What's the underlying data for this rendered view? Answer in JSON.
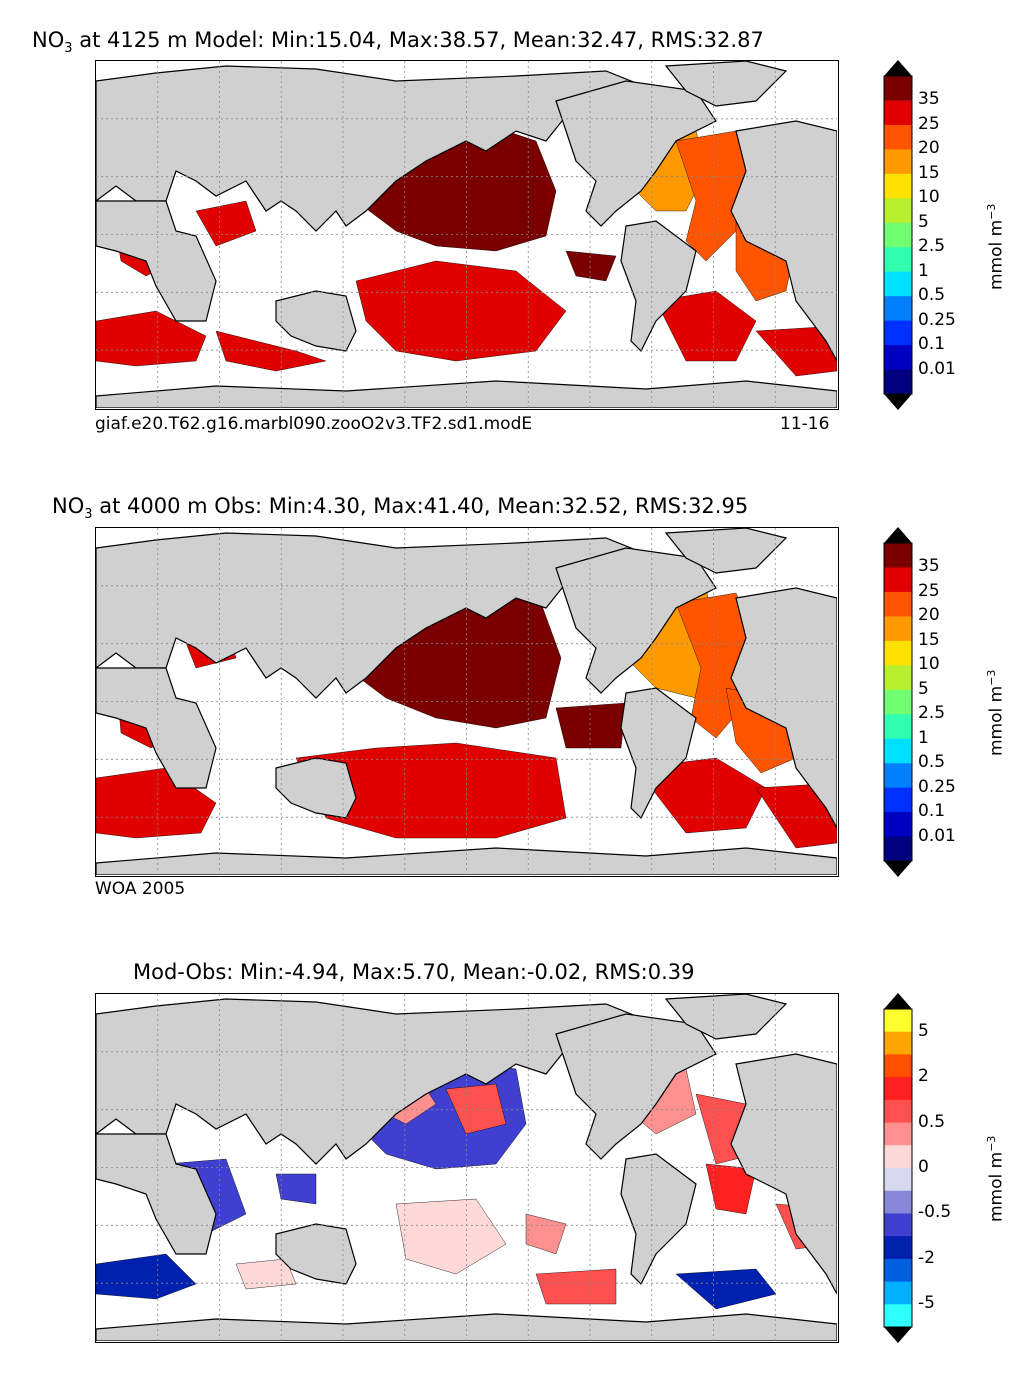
{
  "panels": [
    {
      "title_pre": "NO",
      "title_sub": "3",
      "title_post": " at 4125 m Model: Min:15.04, Max:38.57, Mean:32.47, RMS:32.87",
      "caption_left": "giaf.e20.T62.g16.marbl090.zooO2v3.TF2.sd1.modE",
      "caption_right": "11-16",
      "colorbar_labels": [
        "35",
        "25",
        "20",
        "15",
        "10",
        "5",
        "2.5",
        "1",
        "0.5",
        "0.25",
        "0.1",
        "0.01"
      ],
      "colorbar_colors": [
        "#7a0000",
        "#e00000",
        "#ff5500",
        "#ff9900",
        "#ffe000",
        "#b8f030",
        "#70ff70",
        "#30ffb0",
        "#00e0ff",
        "#0080ff",
        "#0030ff",
        "#0000c0",
        "#000080"
      ],
      "unit": "mmol m",
      "unit_sup": "−3"
    },
    {
      "title_pre": "NO",
      "title_sub": "3",
      "title_post": " at 4000 m Obs: Min:4.30, Max:41.40, Mean:32.52, RMS:32.95",
      "caption_left": "WOA 2005",
      "caption_right": "",
      "colorbar_labels": [
        "35",
        "25",
        "20",
        "15",
        "10",
        "5",
        "2.5",
        "1",
        "0.5",
        "0.25",
        "0.1",
        "0.01"
      ],
      "colorbar_colors": [
        "#7a0000",
        "#e00000",
        "#ff5500",
        "#ff9900",
        "#ffe000",
        "#b8f030",
        "#70ff70",
        "#30ffb0",
        "#00e0ff",
        "#0080ff",
        "#0030ff",
        "#0000c0",
        "#000080"
      ],
      "unit": "mmol m",
      "unit_sup": "−3"
    },
    {
      "title_pre": "Mod-Obs: Min:-4.94, Max:5.70, Mean:-0.02, RMS:0.39",
      "title_sub": "",
      "title_post": "",
      "caption_left": "",
      "caption_right": "",
      "colorbar_labels": [
        "5",
        "2",
        "0.5",
        "0",
        "-0.5",
        "-2",
        "-5"
      ],
      "colorbar_colors": [
        "#ffff30",
        "#ffa500",
        "#ff5000",
        "#ff2020",
        "#ff5050",
        "#ff9090",
        "#ffd8d8",
        "#d8d8f0",
        "#8888d8",
        "#4040d0",
        "#0020b0",
        "#0060e0",
        "#00b0ff",
        "#30ffff"
      ],
      "unit": "mmol m",
      "unit_sup": "−3"
    }
  ],
  "colors": {
    "land": "#d0d0d0",
    "ocean": "#ffffff",
    "grid": "#888888"
  }
}
